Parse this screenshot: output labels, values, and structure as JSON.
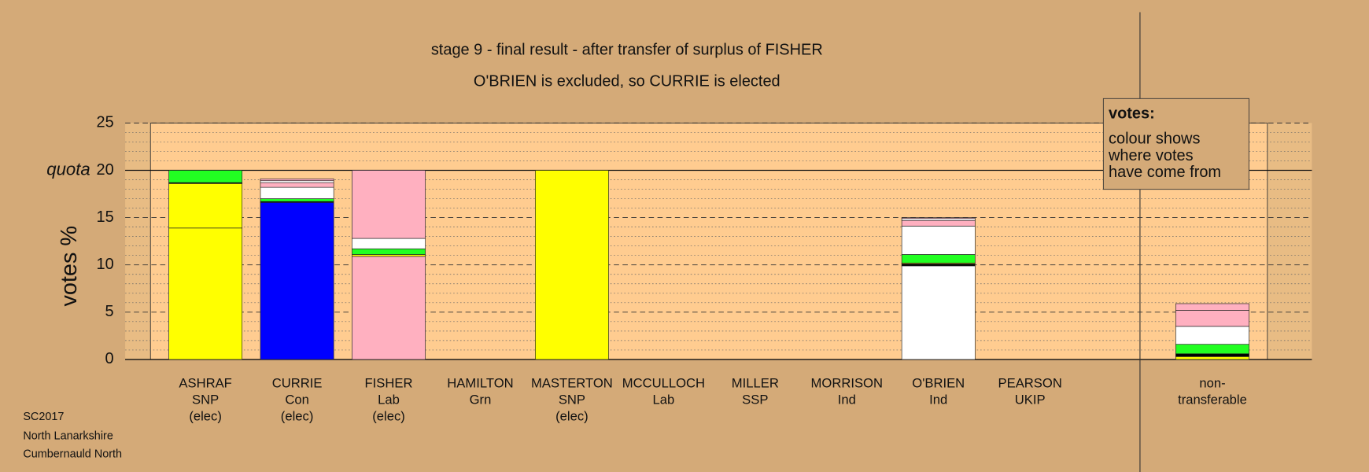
{
  "chart_data": {
    "type": "stacked-bar",
    "title": "stage 9 - final result - after transfer of surplus of FISHER",
    "subtitle": "O'BRIEN is excluded, so CURRIE is elected",
    "y_label": "votes %",
    "ylim": [
      0,
      25
    ],
    "yticks": [
      0,
      5,
      10,
      15,
      20,
      25
    ],
    "yminor": [
      1,
      2,
      3,
      4,
      6,
      7,
      8,
      9,
      11,
      12,
      13,
      14,
      16,
      17,
      18,
      19,
      21,
      22,
      23,
      24
    ],
    "quota": {
      "value": 20,
      "label": "quota"
    },
    "grid": true,
    "categories": [
      [
        "ASHRAF",
        "SNP",
        "(elec)"
      ],
      [
        "CURRIE",
        "Con",
        "(elec)"
      ],
      [
        "FISHER",
        "Lab",
        "(elec)"
      ],
      [
        "HAMILTON",
        "Grn"
      ],
      [
        "MASTERTON",
        "SNP",
        "(elec)"
      ],
      [
        "MCCULLOCH",
        "Lab"
      ],
      [
        "MILLER",
        "SSP"
      ],
      [
        "MORRISON",
        "Ind"
      ],
      [
        "O'BRIEN",
        "Ind"
      ],
      [
        "PEARSON",
        "UKIP"
      ],
      [
        "non-",
        "transferable"
      ]
    ],
    "stacks": [
      [
        {
          "color": "#ffff00",
          "value": 13.9
        },
        {
          "color": "#ffff00",
          "value": 4.7
        },
        {
          "color": "#000000",
          "value": 0.1
        },
        {
          "color": "#22ff22",
          "value": 1.3
        }
      ],
      [
        {
          "color": "#0000ff",
          "value": 16.6
        },
        {
          "color": "#000000",
          "value": 0.1
        },
        {
          "color": "#22ff22",
          "value": 0.3
        },
        {
          "color": "#ffffff",
          "value": 1.2
        },
        {
          "color": "#ffb0c0",
          "value": 0.5
        },
        {
          "color": "#ffffff",
          "value": 0.2
        },
        {
          "color": "#ffb0c0",
          "value": 0.2
        }
      ],
      [
        {
          "color": "#ffb0c0",
          "value": 10.9
        },
        {
          "color": "#ffff00",
          "value": 0.2
        },
        {
          "color": "#22ff22",
          "value": 0.6
        },
        {
          "color": "#ffffff",
          "value": 1.1
        },
        {
          "color": "#ffb0c0",
          "value": 7.2
        }
      ],
      [],
      [
        {
          "color": "#ffff00",
          "value": 20
        }
      ],
      [],
      [],
      [],
      [
        {
          "color": "#ffffff",
          "value": 9.9
        },
        {
          "color": "#000000",
          "value": 0.2
        },
        {
          "color": "#ffff00",
          "value": 0.1
        },
        {
          "color": "#22ff22",
          "value": 0.9
        },
        {
          "color": "#ffffff",
          "value": 3.0
        },
        {
          "color": "#ffb0c0",
          "value": 0.6
        },
        {
          "color": "#ffffff",
          "value": 0.2
        },
        {
          "color": "#ffb0c0",
          "value": 0.1
        }
      ],
      [],
      [
        {
          "color": "#ffff00",
          "value": 0.3
        },
        {
          "color": "#000000",
          "value": 0.3
        },
        {
          "color": "#22ff22",
          "value": 1.0
        },
        {
          "color": "#ffffff",
          "value": 1.9
        },
        {
          "color": "#ffb0c0",
          "value": 1.7
        },
        {
          "color": "#ffb0c0",
          "value": 0.7
        }
      ]
    ],
    "legend": {
      "title": "votes:",
      "lines": [
        "colour shows",
        "where votes",
        "have come from"
      ]
    },
    "footer": [
      "SC2017",
      "North Lanarkshire",
      "Cumbernauld North"
    ]
  }
}
